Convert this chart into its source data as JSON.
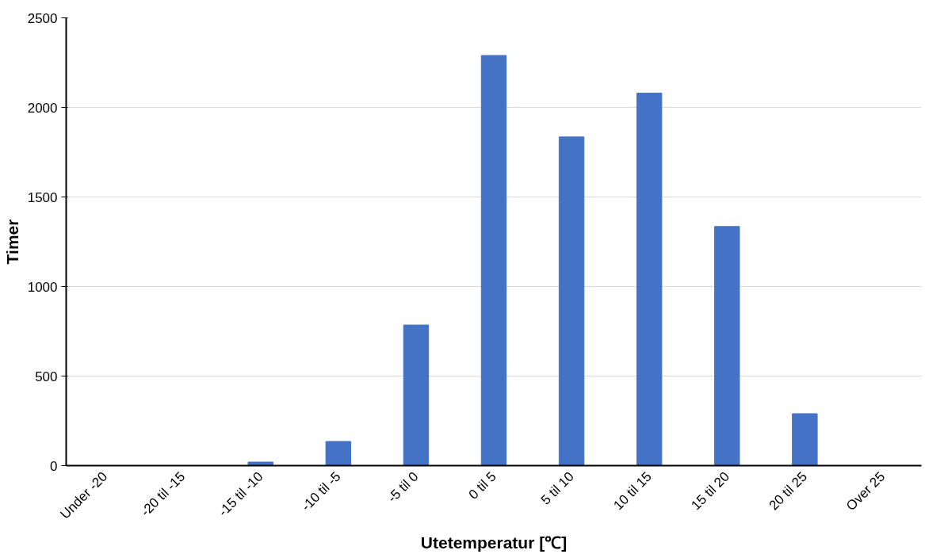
{
  "chart_data": {
    "type": "bar",
    "xlabel": "Utetemperatur [℃]",
    "ylabel": "Timer",
    "categories": [
      "Under -20",
      "-20 til -15",
      "-15 til -10",
      "-10 til -5",
      "-5 til 0",
      "0 til 5",
      "5 til 10",
      "10 til 15",
      "15 til 20",
      "20 til 25",
      "Over 25"
    ],
    "values": [
      0,
      0,
      20,
      135,
      785,
      2290,
      1835,
      2080,
      1335,
      290,
      0
    ],
    "color": "#4472c4",
    "ylim": [
      0,
      2500
    ],
    "yticks": [
      0,
      500,
      1000,
      1500,
      2000,
      2500
    ],
    "grid": "y"
  }
}
